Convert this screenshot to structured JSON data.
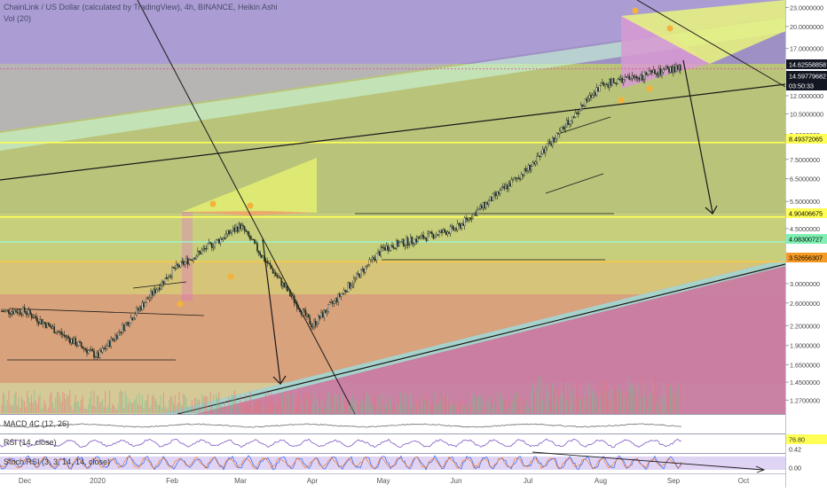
{
  "header": {
    "title": "ChainLink / US Dollar (calculated by TradingView), 4h, BINANCE, Heikin Ashi",
    "volume": "Vol (20)"
  },
  "panes": {
    "macd": "MACD 4C (12, 26)",
    "rsi": "RSI (14, close)",
    "stoch": "Stoch RSI (3, 3, 14, 14, close)"
  },
  "colors": {
    "background": "#ffffff",
    "axis_bg": "#ffffff",
    "up_candle": "#1f2b1f",
    "line_dark": "#1a1a1a",
    "yellow_line": "#ffff55",
    "orange": "#f59a23",
    "price_label_bg": "#ffffff"
  },
  "price_axis": {
    "ticks": [
      "23.0000000",
      "20.0000000",
      "17.0000000",
      "12.0000000",
      "10.5000000",
      "9.0000000",
      "7.5000000",
      "6.5000000",
      "5.5000000",
      "4.5000000",
      "3.0000000",
      "2.6000000",
      "2.2000000",
      "1.9000000",
      "1.6500000",
      "1.4500000",
      "1.2700000"
    ],
    "labels": [
      {
        "text": "14.62558858",
        "style": "dark"
      },
      {
        "text": "14.59779682",
        "style": "dark"
      },
      {
        "text": "03:50:33",
        "style": "dark"
      },
      {
        "text": "8.49372065",
        "style": "yellow"
      },
      {
        "text": "4.90406675",
        "style": "yellow"
      },
      {
        "text": "4.08300727",
        "style": "green"
      },
      {
        "text": "3.52656307",
        "style": "orange"
      }
    ],
    "indicator_labels": [
      "76.80",
      "0.42",
      "0.00"
    ]
  },
  "time_axis": {
    "labels": [
      "Dec",
      "2020",
      "Feb",
      "Mar",
      "Apr",
      "May",
      "Jun",
      "Jul",
      "Aug",
      "Sep",
      "Oct"
    ]
  },
  "chart_data": {
    "type": "candlestick",
    "title": "ChainLink / US Dollar (calculated by TradingView), 4h, BINANCE, Heikin Ashi",
    "y_scale": "log",
    "ylim": [
      1.2,
      24
    ],
    "x_labels": [
      "Dec",
      "2020",
      "Feb",
      "Mar",
      "Apr",
      "May",
      "Jun",
      "Jul",
      "Aug",
      "Sep",
      "Oct"
    ],
    "price_path": [
      [
        "Dec",
        2.45
      ],
      [
        "2020",
        1.75
      ],
      [
        "Feb",
        3.3
      ],
      [
        "Mar",
        4.6
      ],
      [
        "Apr",
        2.2
      ],
      [
        "May",
        3.9
      ],
      [
        "Jun",
        4.5
      ],
      [
        "Jul",
        7.0
      ],
      [
        "Aug",
        13.0
      ],
      [
        "Sep",
        14.6
      ]
    ],
    "horizontal_levels": [
      8.49372065,
      4.90406675,
      4.08300727,
      3.52656307
    ],
    "last_price": 14.62558858,
    "indicators": {
      "rsi_level": 76.8,
      "stoch_levels": [
        0.42,
        0.0
      ]
    },
    "grid": false
  }
}
